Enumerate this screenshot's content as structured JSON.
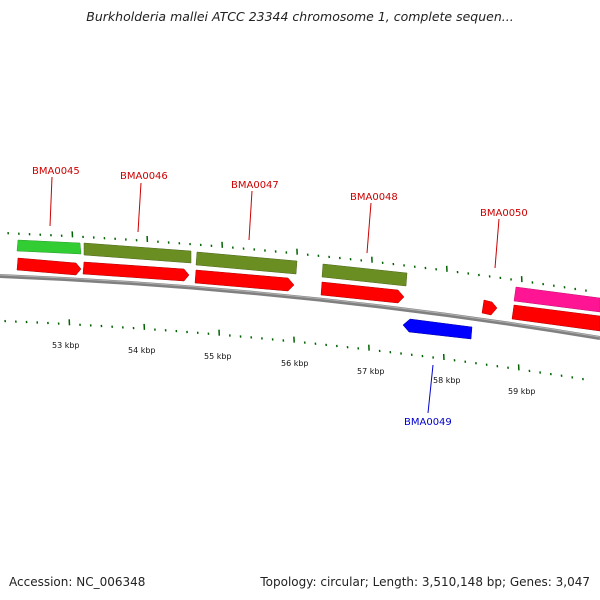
{
  "title": "Burkholderia mallei ATCC 23344 chromosome 1, complete sequen...",
  "footer": {
    "accession": "Accession: NC_006348",
    "summary": "Topology: circular; Length: 3,510,148 bp; Genes: 3,047"
  },
  "colors": {
    "backbone": "#808080",
    "cds_red": "#ff0000",
    "olive": "#6b8e23",
    "green": "#32cd32",
    "magenta": "#ff1493",
    "blue": "#0000ff",
    "tick": "#006400",
    "label_red": "#cc0000",
    "label_blue": "#0000cc"
  },
  "genes": [
    {
      "name": "BMA0045",
      "strand": "+"
    },
    {
      "name": "BMA0046",
      "strand": "+"
    },
    {
      "name": "BMA0047",
      "strand": "+"
    },
    {
      "name": "BMA0048",
      "strand": "+"
    },
    {
      "name": "BMA0049",
      "strand": "-"
    },
    {
      "name": "BMA0050",
      "strand": "+"
    }
  ],
  "kbp_labels": [
    "53 kbp",
    "54 kbp",
    "55 kbp",
    "56 kbp",
    "57 kbp",
    "58 kbp",
    "59 kbp"
  ]
}
